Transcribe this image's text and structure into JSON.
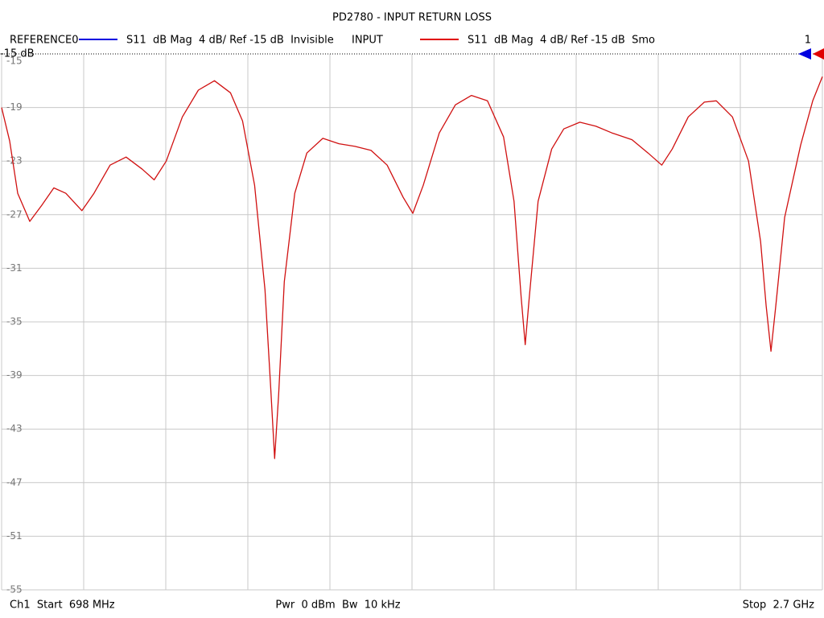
{
  "chart_data": {
    "type": "line",
    "title": "PD2780 - INPUT RETURN LOSS",
    "legend": [
      {
        "label": "REFERENCE0",
        "color": "#0000e0",
        "text": "S11  dB Mag  4 dB/ Ref -15 dB  Invisible"
      },
      {
        "label": "INPUT",
        "color": "#e00000",
        "text": "S11  dB Mag  4 dB/ Ref -15 dB  Smo"
      }
    ],
    "reference_label": "-15 dB",
    "reference_value": -15,
    "marker_label": "1",
    "footer": {
      "start": "Ch1  Start  698 MHz",
      "power": "Pwr  0 dBm  Bw  10 kHz",
      "stop": "Stop  2.7 GHz"
    },
    "xlim": [
      698,
      2700
    ],
    "xticks": [
      698,
      898.2,
      1098.4,
      1298.6,
      1498.8,
      1699,
      1899.2,
      2099.4,
      2299.6,
      2499.8,
      2700
    ],
    "ylim": [
      -55,
      -15
    ],
    "yticks": [
      -15,
      -19,
      -23,
      -27,
      -31,
      -35,
      -39,
      -43,
      -47,
      -51,
      -55
    ],
    "grid": true,
    "x": [
      698,
      717.6,
      737.2,
      766.6,
      795.9,
      825.3,
      854.7,
      893.9,
      923.3,
      962.5,
      1001.6,
      1040.8,
      1070.2,
      1099.6,
      1138.8,
      1177.9,
      1217.1,
      1256.3,
      1285.7,
      1315.1,
      1340.5,
      1354.2,
      1364.0,
      1373.8,
      1387.5,
      1413.0,
      1442.4,
      1481.6,
      1520.7,
      1559.9,
      1599.1,
      1638.3,
      1677.5,
      1700.9,
      1726.4,
      1765.6,
      1804.8,
      1844.0,
      1883.1,
      1922.3,
      1947.8,
      1965.4,
      1975.2,
      1985.0,
      2006.5,
      2039.8,
      2069.2,
      2108.4,
      2147.6,
      2186.8,
      2235.7,
      2274.9,
      2308.2,
      2333.7,
      2372.9,
      2412.0,
      2441.4,
      2480.6,
      2519.8,
      2549.2,
      2562.9,
      2574.6,
      2586.4,
      2607.9,
      2647.1,
      2676.5,
      2700
    ],
    "series": [
      {
        "name": "INPUT",
        "color": "#d01010",
        "values": [
          -19,
          -21.5,
          -25.4,
          -27.5,
          -26.3,
          -25,
          -25.4,
          -26.7,
          -25.4,
          -23.3,
          -22.7,
          -23.6,
          -24.4,
          -23,
          -19.7,
          -17.7,
          -17,
          -17.9,
          -20,
          -24.8,
          -32.6,
          -39.8,
          -45.2,
          -40.4,
          -32,
          -25.4,
          -22.4,
          -21.3,
          -21.7,
          -21.9,
          -22.2,
          -23.3,
          -25.7,
          -26.9,
          -24.8,
          -20.9,
          -18.8,
          -18.1,
          -18.5,
          -21.2,
          -26,
          -33.2,
          -36.7,
          -33.2,
          -26,
          -22.1,
          -20.6,
          -20.1,
          -20.4,
          -20.9,
          -21.4,
          -22.4,
          -23.3,
          -22.1,
          -19.7,
          -18.6,
          -18.5,
          -19.7,
          -23,
          -29,
          -33.8,
          -37.2,
          -33.8,
          -27.2,
          -21.8,
          -18.5,
          -16.7
        ]
      }
    ]
  }
}
